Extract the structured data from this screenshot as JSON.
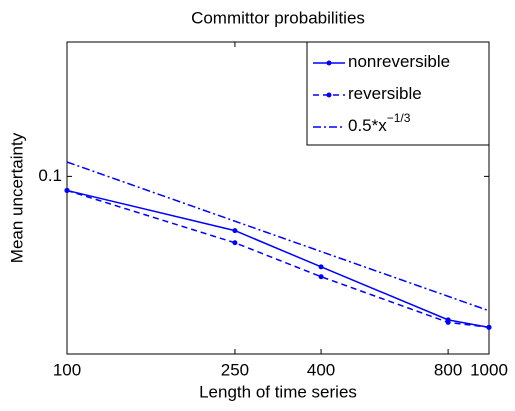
{
  "chart_data": {
    "type": "line",
    "title": "Committor probabilities",
    "xlabel": "Length of time series",
    "ylabel": "Mean uncertainty",
    "x": [
      100,
      250,
      400,
      800,
      1000
    ],
    "series": [
      {
        "name": "nonreversible",
        "color": "#0000ff",
        "style": "solid",
        "marker": true,
        "values": [
          0.093,
          0.0756,
          0.0627,
          0.0477,
          0.0459
        ]
      },
      {
        "name": "reversible",
        "color": "#0000ff",
        "style": "dashed",
        "marker": true,
        "values": [
          0.093,
          0.071,
          0.0596,
          0.0471,
          0.0459
        ]
      },
      {
        "name": "0.5*x",
        "name_superscript": "−1/3",
        "color": "#0000ff",
        "style": "dashdot",
        "marker": false,
        "x": [
          100,
          1000
        ],
        "values": [
          0.1077,
          0.05
        ]
      }
    ],
    "xlim": [
      100,
      1000
    ],
    "ylim": [
      0.04,
      0.2
    ],
    "xticks": [
      100,
      250,
      400,
      800,
      1000
    ],
    "yticks": [
      0.1
    ],
    "xscale": "log",
    "yscale": "log",
    "grid": false,
    "legend": "top-right"
  }
}
